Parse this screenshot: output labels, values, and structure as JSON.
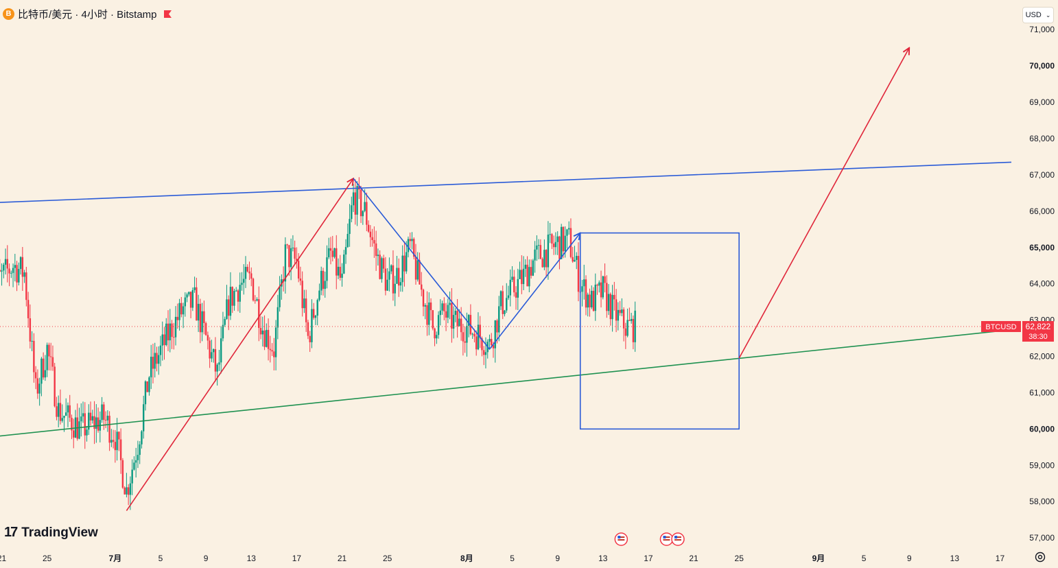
{
  "header": {
    "coin_icon": "B",
    "title": "比特币/美元 · 4小时 · Bitstamp",
    "flag_icon": "red-flag-icon",
    "currency": "USD"
  },
  "branding": {
    "logo_mark": "17",
    "logo_text": "TradingView"
  },
  "price_label": {
    "symbol": "BTCUSD",
    "price": "62,822",
    "countdown": "38:30"
  },
  "colors": {
    "background": "#faf1e3",
    "up_candle": "#089981",
    "down_candle": "#f23645",
    "blue_line": "#2a5bd7",
    "green_line": "#1e9150",
    "red_line": "#e0263a"
  },
  "chart_data": {
    "type": "candlestick",
    "y_axis": {
      "range": [
        56700,
        71250
      ],
      "ticks": [
        57000,
        58000,
        59000,
        60000,
        61000,
        62000,
        63000,
        64000,
        65000,
        66000,
        67000,
        68000,
        69000,
        70000,
        71000
      ],
      "tick_labels": [
        "57,000",
        "58,000",
        "59,000",
        "60,000",
        "61,000",
        "62,000",
        "63,000",
        "64,000",
        "65,000",
        "66,000",
        "67,000",
        "68,000",
        "69,000",
        "70,000",
        "71,000"
      ],
      "bold_ticks": [
        "60,000",
        "65,000",
        "70,000"
      ]
    },
    "x_axis": {
      "range_days": [
        "2024-06-20",
        "2024-09-18"
      ],
      "ticks": [
        {
          "label": "21",
          "date": "2024-06-21"
        },
        {
          "label": "25",
          "date": "2024-06-25"
        },
        {
          "label": "7月",
          "date": "2024-07-01",
          "bold": true
        },
        {
          "label": "5",
          "date": "2024-07-05"
        },
        {
          "label": "9",
          "date": "2024-07-09"
        },
        {
          "label": "13",
          "date": "2024-07-13"
        },
        {
          "label": "17",
          "date": "2024-07-17"
        },
        {
          "label": "21",
          "date": "2024-07-21"
        },
        {
          "label": "25",
          "date": "2024-07-25"
        },
        {
          "label": "8月",
          "date": "2024-08-01",
          "bold": true
        },
        {
          "label": "5",
          "date": "2024-08-05"
        },
        {
          "label": "9",
          "date": "2024-08-09"
        },
        {
          "label": "13",
          "date": "2024-08-13"
        },
        {
          "label": "17",
          "date": "2024-08-17"
        },
        {
          "label": "21",
          "date": "2024-08-21"
        },
        {
          "label": "25",
          "date": "2024-08-25"
        },
        {
          "label": "9月",
          "date": "2024-09-01",
          "bold": true
        },
        {
          "label": "5",
          "date": "2024-09-05"
        },
        {
          "label": "9",
          "date": "2024-09-09"
        },
        {
          "label": "13",
          "date": "2024-09-13"
        },
        {
          "label": "17",
          "date": "2024-09-17"
        }
      ]
    },
    "price_path": {
      "description_free": true,
      "start": "2024-06-20",
      "end": "2024-08-15",
      "last_price": 62822,
      "anchors": [
        [
          "2024-06-20",
          63900
        ],
        [
          "2024-06-22",
          64500
        ],
        [
          "2024-06-23",
          64300
        ],
        [
          "2024-06-24",
          61000
        ],
        [
          "2024-06-25",
          62200
        ],
        [
          "2024-06-26",
          60500
        ],
        [
          "2024-06-28",
          60000
        ],
        [
          "2024-06-30",
          60300
        ],
        [
          "2024-07-01",
          59800
        ],
        [
          "2024-07-02",
          58300
        ],
        [
          "2024-07-03",
          59600
        ],
        [
          "2024-07-04",
          61500
        ],
        [
          "2024-07-06",
          62800
        ],
        [
          "2024-07-07",
          63300
        ],
        [
          "2024-07-08",
          63500
        ],
        [
          "2024-07-09",
          62500
        ],
        [
          "2024-07-10",
          61500
        ],
        [
          "2024-07-11",
          63500
        ],
        [
          "2024-07-12",
          64000
        ],
        [
          "2024-07-13",
          64100
        ],
        [
          "2024-07-14",
          62800
        ],
        [
          "2024-07-15",
          62200
        ],
        [
          "2024-07-16",
          64800
        ],
        [
          "2024-07-17",
          64600
        ],
        [
          "2024-07-18",
          62500
        ],
        [
          "2024-07-19",
          63900
        ],
        [
          "2024-07-20",
          64800
        ],
        [
          "2024-07-21",
          64000
        ],
        [
          "2024-07-22",
          66400
        ],
        [
          "2024-07-23",
          66000
        ],
        [
          "2024-07-24",
          64800
        ],
        [
          "2024-07-25",
          64000
        ],
        [
          "2024-07-26",
          64300
        ],
        [
          "2024-07-27",
          65000
        ],
        [
          "2024-07-28",
          63800
        ],
        [
          "2024-07-29",
          62800
        ],
        [
          "2024-07-30",
          63200
        ],
        [
          "2024-07-31",
          62900
        ],
        [
          "2024-08-01",
          62800
        ],
        [
          "2024-08-02",
          62600
        ],
        [
          "2024-08-03",
          62300
        ],
        [
          "2024-08-04",
          63400
        ],
        [
          "2024-08-05",
          63800
        ],
        [
          "2024-08-06",
          64200
        ],
        [
          "2024-08-07",
          64700
        ],
        [
          "2024-08-08",
          64900
        ],
        [
          "2024-08-09",
          65100
        ],
        [
          "2024-08-10",
          65200
        ],
        [
          "2024-08-11",
          64000
        ],
        [
          "2024-08-12",
          63500
        ],
        [
          "2024-08-13",
          63800
        ],
        [
          "2024-08-14",
          63200
        ],
        [
          "2024-08-15",
          62822
        ]
      ]
    },
    "drawings": [
      {
        "kind": "line",
        "color": "blue",
        "points": [
          [
            "2024-06-20",
            66230
          ],
          [
            "2024-09-18",
            67350
          ]
        ]
      },
      {
        "kind": "line",
        "color": "green",
        "points": [
          [
            "2024-06-20",
            59780
          ],
          [
            "2024-09-17",
            62700
          ]
        ]
      },
      {
        "kind": "polyline",
        "color": "red",
        "arrow": true,
        "points": [
          [
            "2024-07-02",
            57750
          ],
          [
            "2024-07-22",
            66900
          ]
        ]
      },
      {
        "kind": "polyline",
        "color": "blue",
        "arrow": true,
        "points": [
          [
            "2024-07-22",
            66900
          ],
          [
            "2024-08-03",
            62200
          ],
          [
            "2024-08-11",
            65400
          ]
        ]
      },
      {
        "kind": "rect",
        "color": "blue",
        "from": [
          "2024-08-11",
          65400
        ],
        "to": [
          "2024-08-25",
          60000
        ]
      },
      {
        "kind": "polyline",
        "color": "red",
        "arrow": true,
        "points": [
          [
            "2024-08-25",
            61950
          ],
          [
            "2024-09-09",
            70500
          ]
        ]
      }
    ],
    "event_icons": [
      "2024-08-14",
      "2024-08-18",
      "2024-08-19"
    ]
  }
}
